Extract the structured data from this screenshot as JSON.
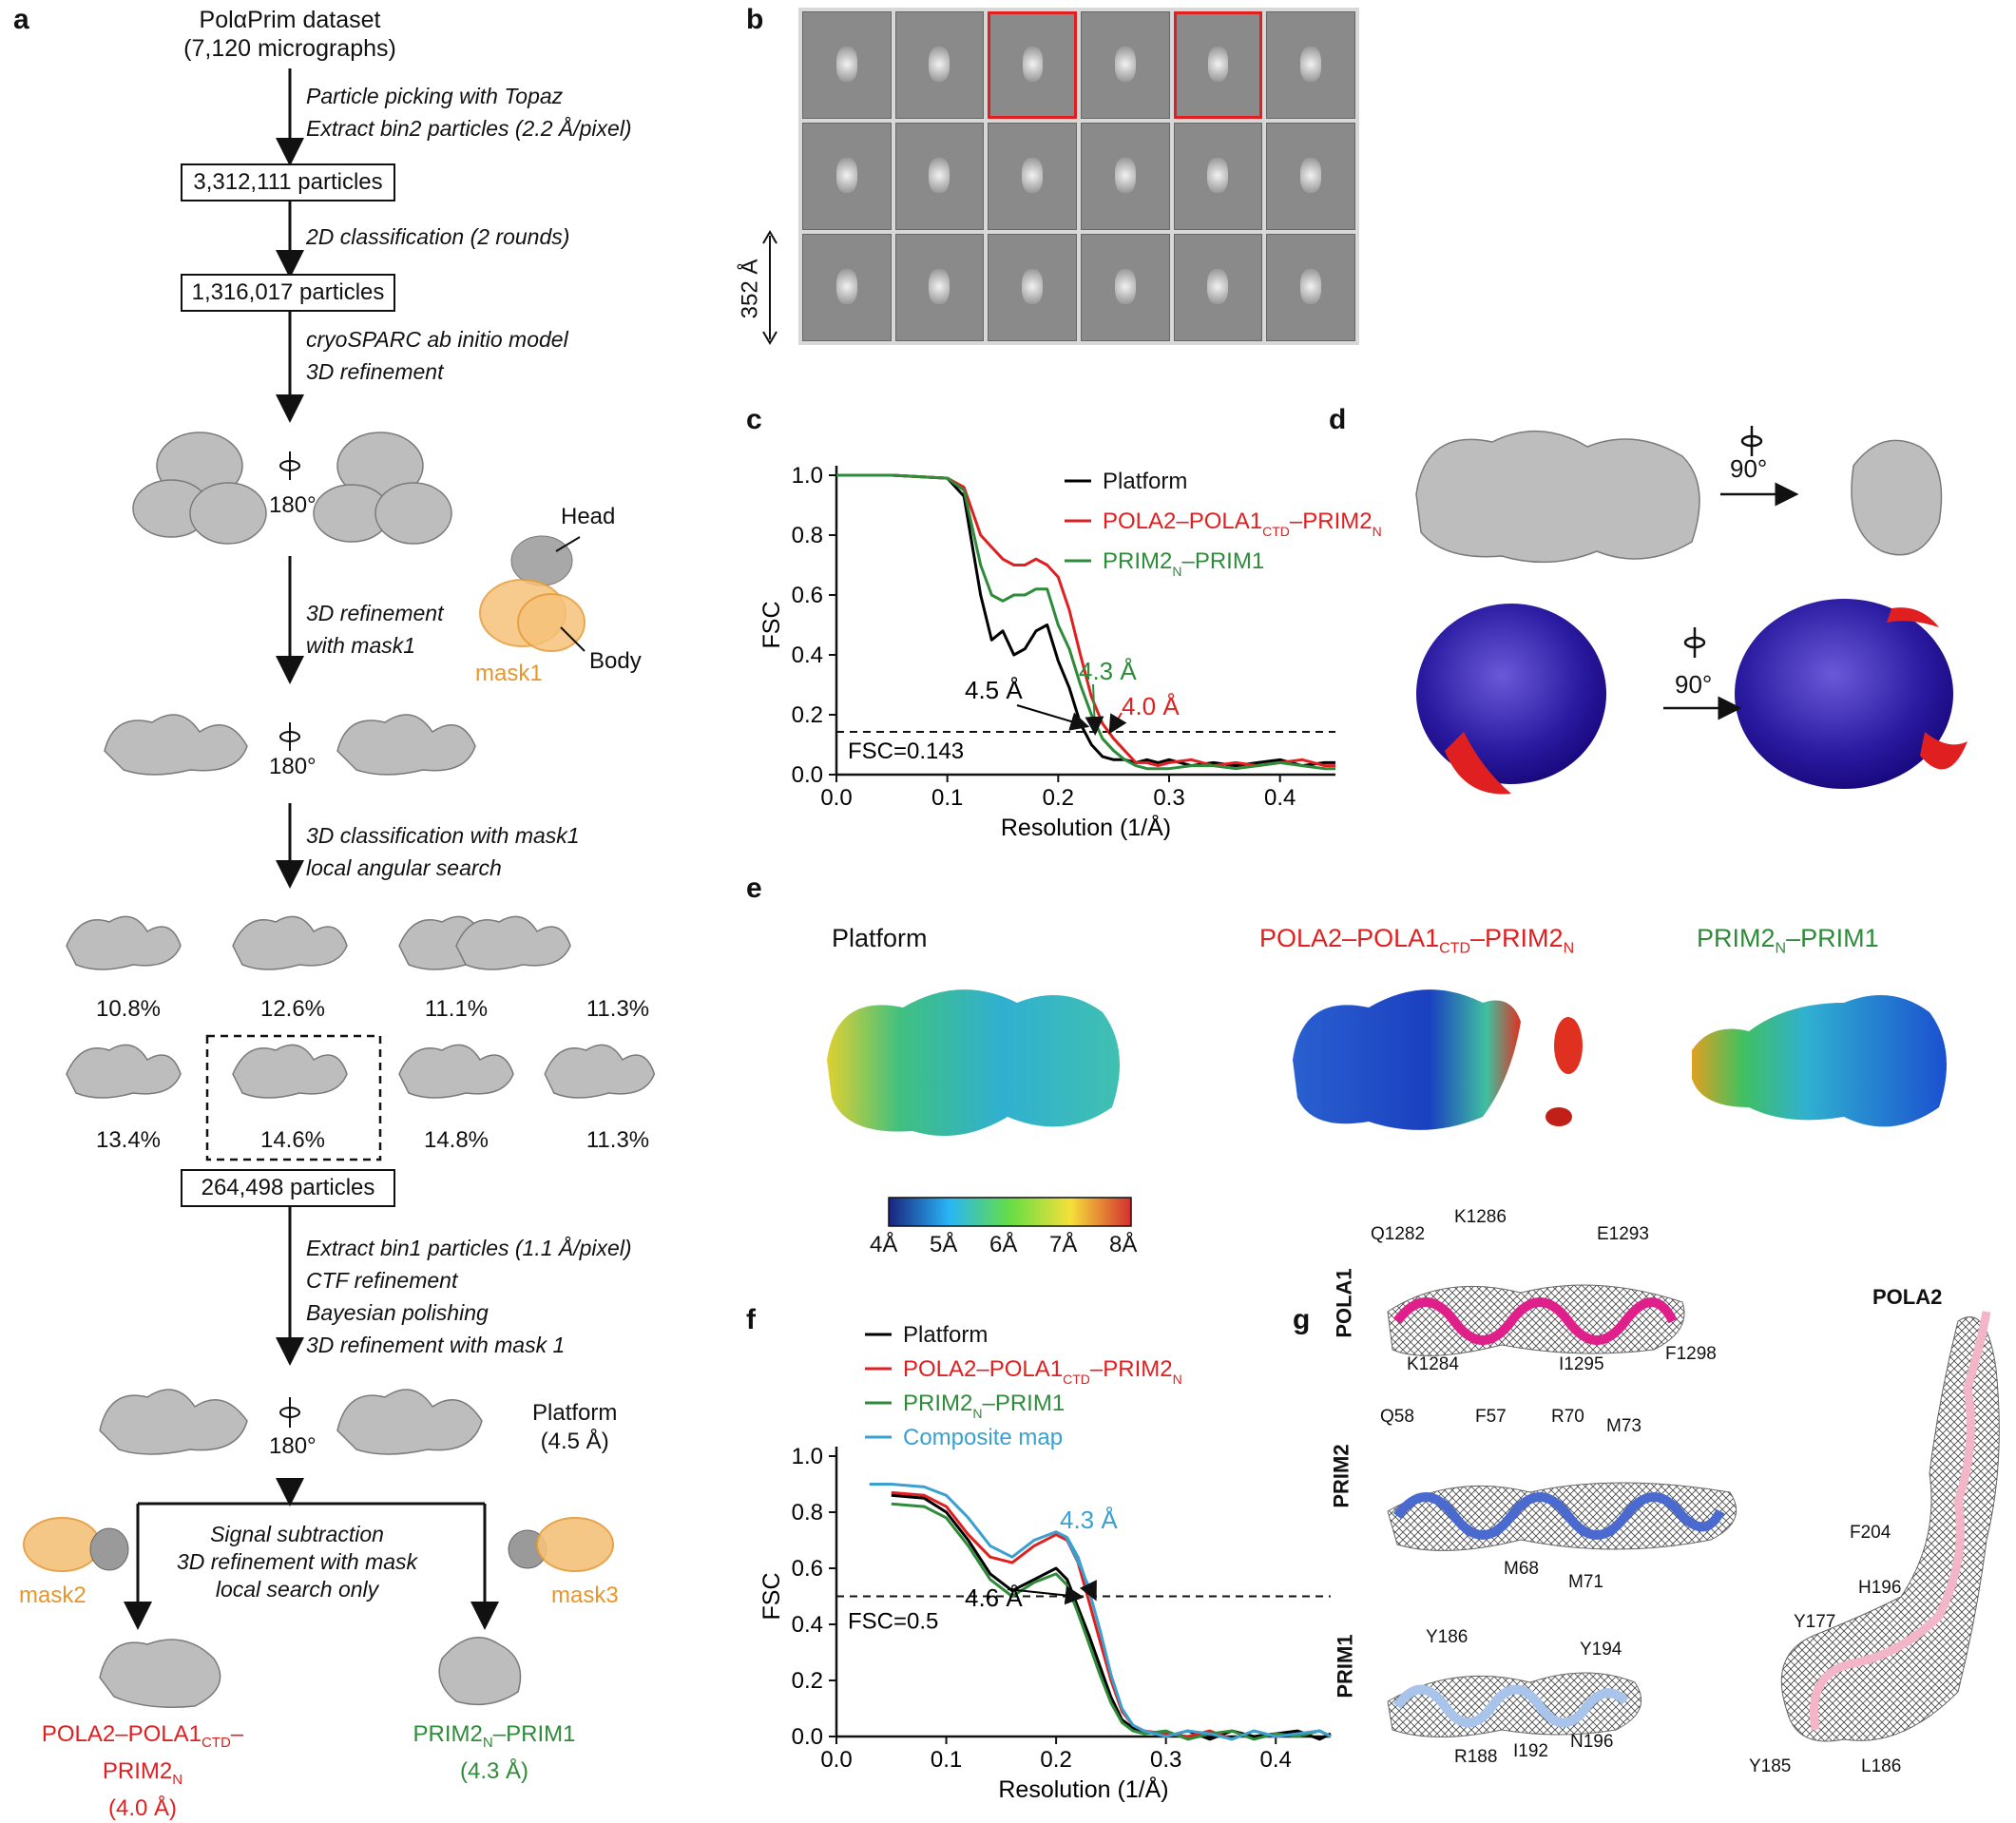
{
  "panels": {
    "a": "a",
    "b": "b",
    "c": "c",
    "d": "d",
    "e": "e",
    "f": "f",
    "g": "g"
  },
  "a": {
    "dataset_line1": "PolαPrim dataset",
    "dataset_line2": "(7,120 micrographs)",
    "step1_line1": "Particle picking with Topaz",
    "step1_line2": "Extract bin2 particles (2.2 Å/pixel)",
    "box1": "3,312,111 particles",
    "step2": "2D classification (2 rounds)",
    "box2": "1,316,017 particles",
    "step3_line1": "cryoSPARC ab initio model",
    "step3_line2": "3D refinement",
    "rot1": "180°",
    "step4_line1": "3D refinement",
    "step4_line2": "with mask1",
    "head_label": "Head",
    "body_label": "Body",
    "mask1_label": "mask1",
    "rot2": "180°",
    "step5_line1": "3D classification with mask1",
    "step5_line2": "local angular search",
    "class_pcts": [
      "10.8%",
      "12.6%",
      "11.1%",
      "11.3%",
      "13.4%",
      "14.6%",
      "14.8%",
      "11.3%"
    ],
    "box3": "264,498 particles",
    "step6_lines": [
      "Extract bin1 particles (1.1 Å/pixel)",
      "CTF refinement",
      "Bayesian polishing",
      "3D refinement with mask 1"
    ],
    "rot3": "180°",
    "platform_line1": "Platform",
    "platform_line2": "(4.5 Å)",
    "step7_lines": [
      "Signal subtraction",
      "3D refinement with mask",
      "local search only"
    ],
    "mask2_label": "mask2",
    "mask3_label": "mask3",
    "out_left_line1": "POLA2–POLA1CTD–PRIM2N",
    "out_left_line2": "(4.0 Å)",
    "out_right_line1": "PRIM2N–PRIM1",
    "out_right_line2": "(4.3 Å)"
  },
  "b": {
    "scale_label": "352 Å"
  },
  "d": {
    "rot_top": "90°",
    "rot_bottom": "90°"
  },
  "e": {
    "map1_title": "Platform",
    "map2_title": "POLA2–POLA1CTD–PRIM2N",
    "map3_title": "PRIM2N–PRIM1",
    "colorbar_ticks": [
      "4Å",
      "5Å",
      "6Å",
      "7Å",
      "8Å"
    ]
  },
  "g": {
    "pola1_label": "POLA1",
    "prim2_label": "PRIM2",
    "prim1_label": "PRIM1",
    "pola2_label": "POLA2",
    "pola1_residues": [
      "Q1282",
      "K1286",
      "E1293",
      "K1284",
      "I1295",
      "F1298"
    ],
    "prim2_residues": [
      "Q58",
      "F57",
      "R70",
      "M73",
      "M68",
      "M71"
    ],
    "prim1_residues": [
      "Y186",
      "Y194",
      "R188",
      "I192",
      "N196"
    ],
    "pola2_residues": [
      "F204",
      "H196",
      "Y177",
      "Y185",
      "L186"
    ]
  },
  "colors": {
    "red": "#e02020",
    "green": "#2e8b3a",
    "black": "#000000",
    "blue": "#3aa0d0",
    "orange": "#f0a040"
  },
  "chart_data": [
    {
      "type": "line",
      "panel": "c",
      "xlabel": "Resolution (1/Å)",
      "ylabel": "FSC",
      "xlim": [
        0.0,
        0.45
      ],
      "ylim": [
        0.0,
        1.0
      ],
      "xticks": [
        "0.0",
        "0.1",
        "0.2",
        "0.3",
        "0.4"
      ],
      "yticks": [
        "0.0",
        "0.2",
        "0.4",
        "0.6",
        "0.8",
        "1.0"
      ],
      "threshold": 0.143,
      "threshold_label": "FSC=0.143",
      "legend": "top-right",
      "series": [
        {
          "name": "Platform",
          "color": "#000000",
          "x": [
            0.0,
            0.05,
            0.1,
            0.115,
            0.13,
            0.14,
            0.15,
            0.16,
            0.17,
            0.18,
            0.19,
            0.2,
            0.21,
            0.22,
            0.23,
            0.24,
            0.25,
            0.26,
            0.27,
            0.28,
            0.29,
            0.3,
            0.32,
            0.34,
            0.36,
            0.38,
            0.4,
            0.42,
            0.44,
            0.45
          ],
          "y": [
            1.0,
            1.0,
            0.99,
            0.93,
            0.6,
            0.45,
            0.48,
            0.4,
            0.42,
            0.48,
            0.5,
            0.38,
            0.29,
            0.17,
            0.1,
            0.06,
            0.05,
            0.05,
            0.04,
            0.05,
            0.04,
            0.05,
            0.03,
            0.04,
            0.03,
            0.04,
            0.05,
            0.03,
            0.04,
            0.04
          ]
        },
        {
          "name": "POLA2–POLA1CTD–PRIM2N",
          "color": "#e02020",
          "x": [
            0.0,
            0.05,
            0.1,
            0.115,
            0.13,
            0.14,
            0.15,
            0.16,
            0.17,
            0.18,
            0.19,
            0.2,
            0.21,
            0.22,
            0.23,
            0.24,
            0.25,
            0.26,
            0.27,
            0.28,
            0.29,
            0.3,
            0.32,
            0.34,
            0.36,
            0.38,
            0.4,
            0.42,
            0.44,
            0.45
          ],
          "y": [
            1.0,
            1.0,
            0.99,
            0.96,
            0.8,
            0.76,
            0.72,
            0.7,
            0.7,
            0.72,
            0.7,
            0.66,
            0.55,
            0.4,
            0.26,
            0.17,
            0.12,
            0.08,
            0.04,
            0.04,
            0.03,
            0.04,
            0.05,
            0.03,
            0.04,
            0.03,
            0.04,
            0.05,
            0.03,
            0.03
          ]
        },
        {
          "name": "PRIM2N–PRIM1",
          "color": "#2e8b3a",
          "x": [
            0.0,
            0.05,
            0.1,
            0.115,
            0.13,
            0.14,
            0.15,
            0.16,
            0.17,
            0.18,
            0.19,
            0.2,
            0.21,
            0.22,
            0.23,
            0.24,
            0.25,
            0.26,
            0.27,
            0.28,
            0.29,
            0.3,
            0.32,
            0.34,
            0.36,
            0.38,
            0.4,
            0.42,
            0.44,
            0.45
          ],
          "y": [
            1.0,
            1.0,
            0.99,
            0.95,
            0.7,
            0.6,
            0.58,
            0.6,
            0.6,
            0.62,
            0.62,
            0.5,
            0.42,
            0.3,
            0.2,
            0.12,
            0.08,
            0.05,
            0.03,
            0.02,
            0.02,
            0.02,
            0.03,
            0.03,
            0.02,
            0.03,
            0.04,
            0.03,
            0.02,
            0.02
          ]
        }
      ],
      "annotations": [
        {
          "text": "4.5 Å",
          "color": "#000000",
          "x": 0.22
        },
        {
          "text": "4.3 Å",
          "color": "#2e8b3a",
          "x": 0.233
        },
        {
          "text": "4.0 Å",
          "color": "#e02020",
          "x": 0.25
        }
      ]
    },
    {
      "type": "line",
      "panel": "f",
      "xlabel": "Resolution (1/Å)",
      "ylabel": "FSC",
      "xlim": [
        0.0,
        0.45
      ],
      "ylim": [
        0.0,
        1.0
      ],
      "xticks": [
        "0.0",
        "0.1",
        "0.2",
        "0.3",
        "0.4"
      ],
      "yticks": [
        "0.0",
        "0.2",
        "0.4",
        "0.6",
        "0.8",
        "1.0"
      ],
      "threshold": 0.5,
      "threshold_label": "FSC=0.5",
      "legend": "top-left",
      "series": [
        {
          "name": "Platform",
          "color": "#000000",
          "x": [
            0.05,
            0.08,
            0.1,
            0.12,
            0.14,
            0.16,
            0.18,
            0.2,
            0.21,
            0.22,
            0.23,
            0.24,
            0.25,
            0.26,
            0.27,
            0.28,
            0.3,
            0.32,
            0.34,
            0.36,
            0.38,
            0.4,
            0.42,
            0.44,
            0.45
          ],
          "y": [
            0.86,
            0.85,
            0.8,
            0.7,
            0.58,
            0.52,
            0.56,
            0.6,
            0.56,
            0.46,
            0.36,
            0.25,
            0.14,
            0.06,
            0.03,
            0.02,
            0.0,
            0.02,
            -0.01,
            0.02,
            0.0,
            0.01,
            0.02,
            -0.01,
            0.01
          ]
        },
        {
          "name": "POLA2–POLA1CTD–PRIM2N",
          "color": "#e02020",
          "x": [
            0.05,
            0.08,
            0.1,
            0.12,
            0.14,
            0.16,
            0.18,
            0.2,
            0.21,
            0.22,
            0.23,
            0.24,
            0.25,
            0.26,
            0.27,
            0.28,
            0.3,
            0.32,
            0.34,
            0.36,
            0.38,
            0.4,
            0.42,
            0.44,
            0.45
          ],
          "y": [
            0.87,
            0.86,
            0.82,
            0.72,
            0.64,
            0.62,
            0.68,
            0.72,
            0.7,
            0.62,
            0.48,
            0.34,
            0.2,
            0.09,
            0.04,
            0.02,
            0.01,
            0.0,
            0.02,
            -0.01,
            0.02,
            0.0,
            0.01,
            0.02,
            0.0
          ]
        },
        {
          "name": "PRIM2N–PRIM1",
          "color": "#2e8b3a",
          "x": [
            0.05,
            0.08,
            0.1,
            0.12,
            0.14,
            0.16,
            0.18,
            0.2,
            0.21,
            0.22,
            0.23,
            0.24,
            0.25,
            0.26,
            0.27,
            0.28,
            0.3,
            0.32,
            0.34,
            0.36,
            0.38,
            0.4,
            0.42,
            0.44,
            0.45
          ],
          "y": [
            0.83,
            0.82,
            0.78,
            0.68,
            0.56,
            0.5,
            0.55,
            0.58,
            0.54,
            0.44,
            0.33,
            0.22,
            0.12,
            0.05,
            0.02,
            0.01,
            0.02,
            -0.01,
            0.01,
            0.02,
            -0.01,
            0.01,
            0.0,
            0.02,
            0.0
          ]
        },
        {
          "name": "Composite map",
          "color": "#3aa0d0",
          "x": [
            0.03,
            0.05,
            0.08,
            0.1,
            0.12,
            0.14,
            0.16,
            0.18,
            0.2,
            0.21,
            0.22,
            0.23,
            0.24,
            0.25,
            0.26,
            0.27,
            0.28,
            0.3,
            0.32,
            0.34,
            0.36,
            0.38,
            0.4,
            0.42,
            0.44,
            0.45
          ],
          "y": [
            0.9,
            0.9,
            0.89,
            0.86,
            0.78,
            0.68,
            0.64,
            0.7,
            0.73,
            0.71,
            0.64,
            0.52,
            0.38,
            0.22,
            0.1,
            0.04,
            0.02,
            0.0,
            0.02,
            0.01,
            -0.01,
            0.02,
            0.0,
            0.01,
            0.02,
            0.0
          ]
        }
      ],
      "annotations": [
        {
          "text": "4.6 Å",
          "color": "#000000",
          "x": 0.217
        },
        {
          "text": "4.3 Å",
          "color": "#3aa0d0",
          "x": 0.233
        }
      ]
    }
  ]
}
